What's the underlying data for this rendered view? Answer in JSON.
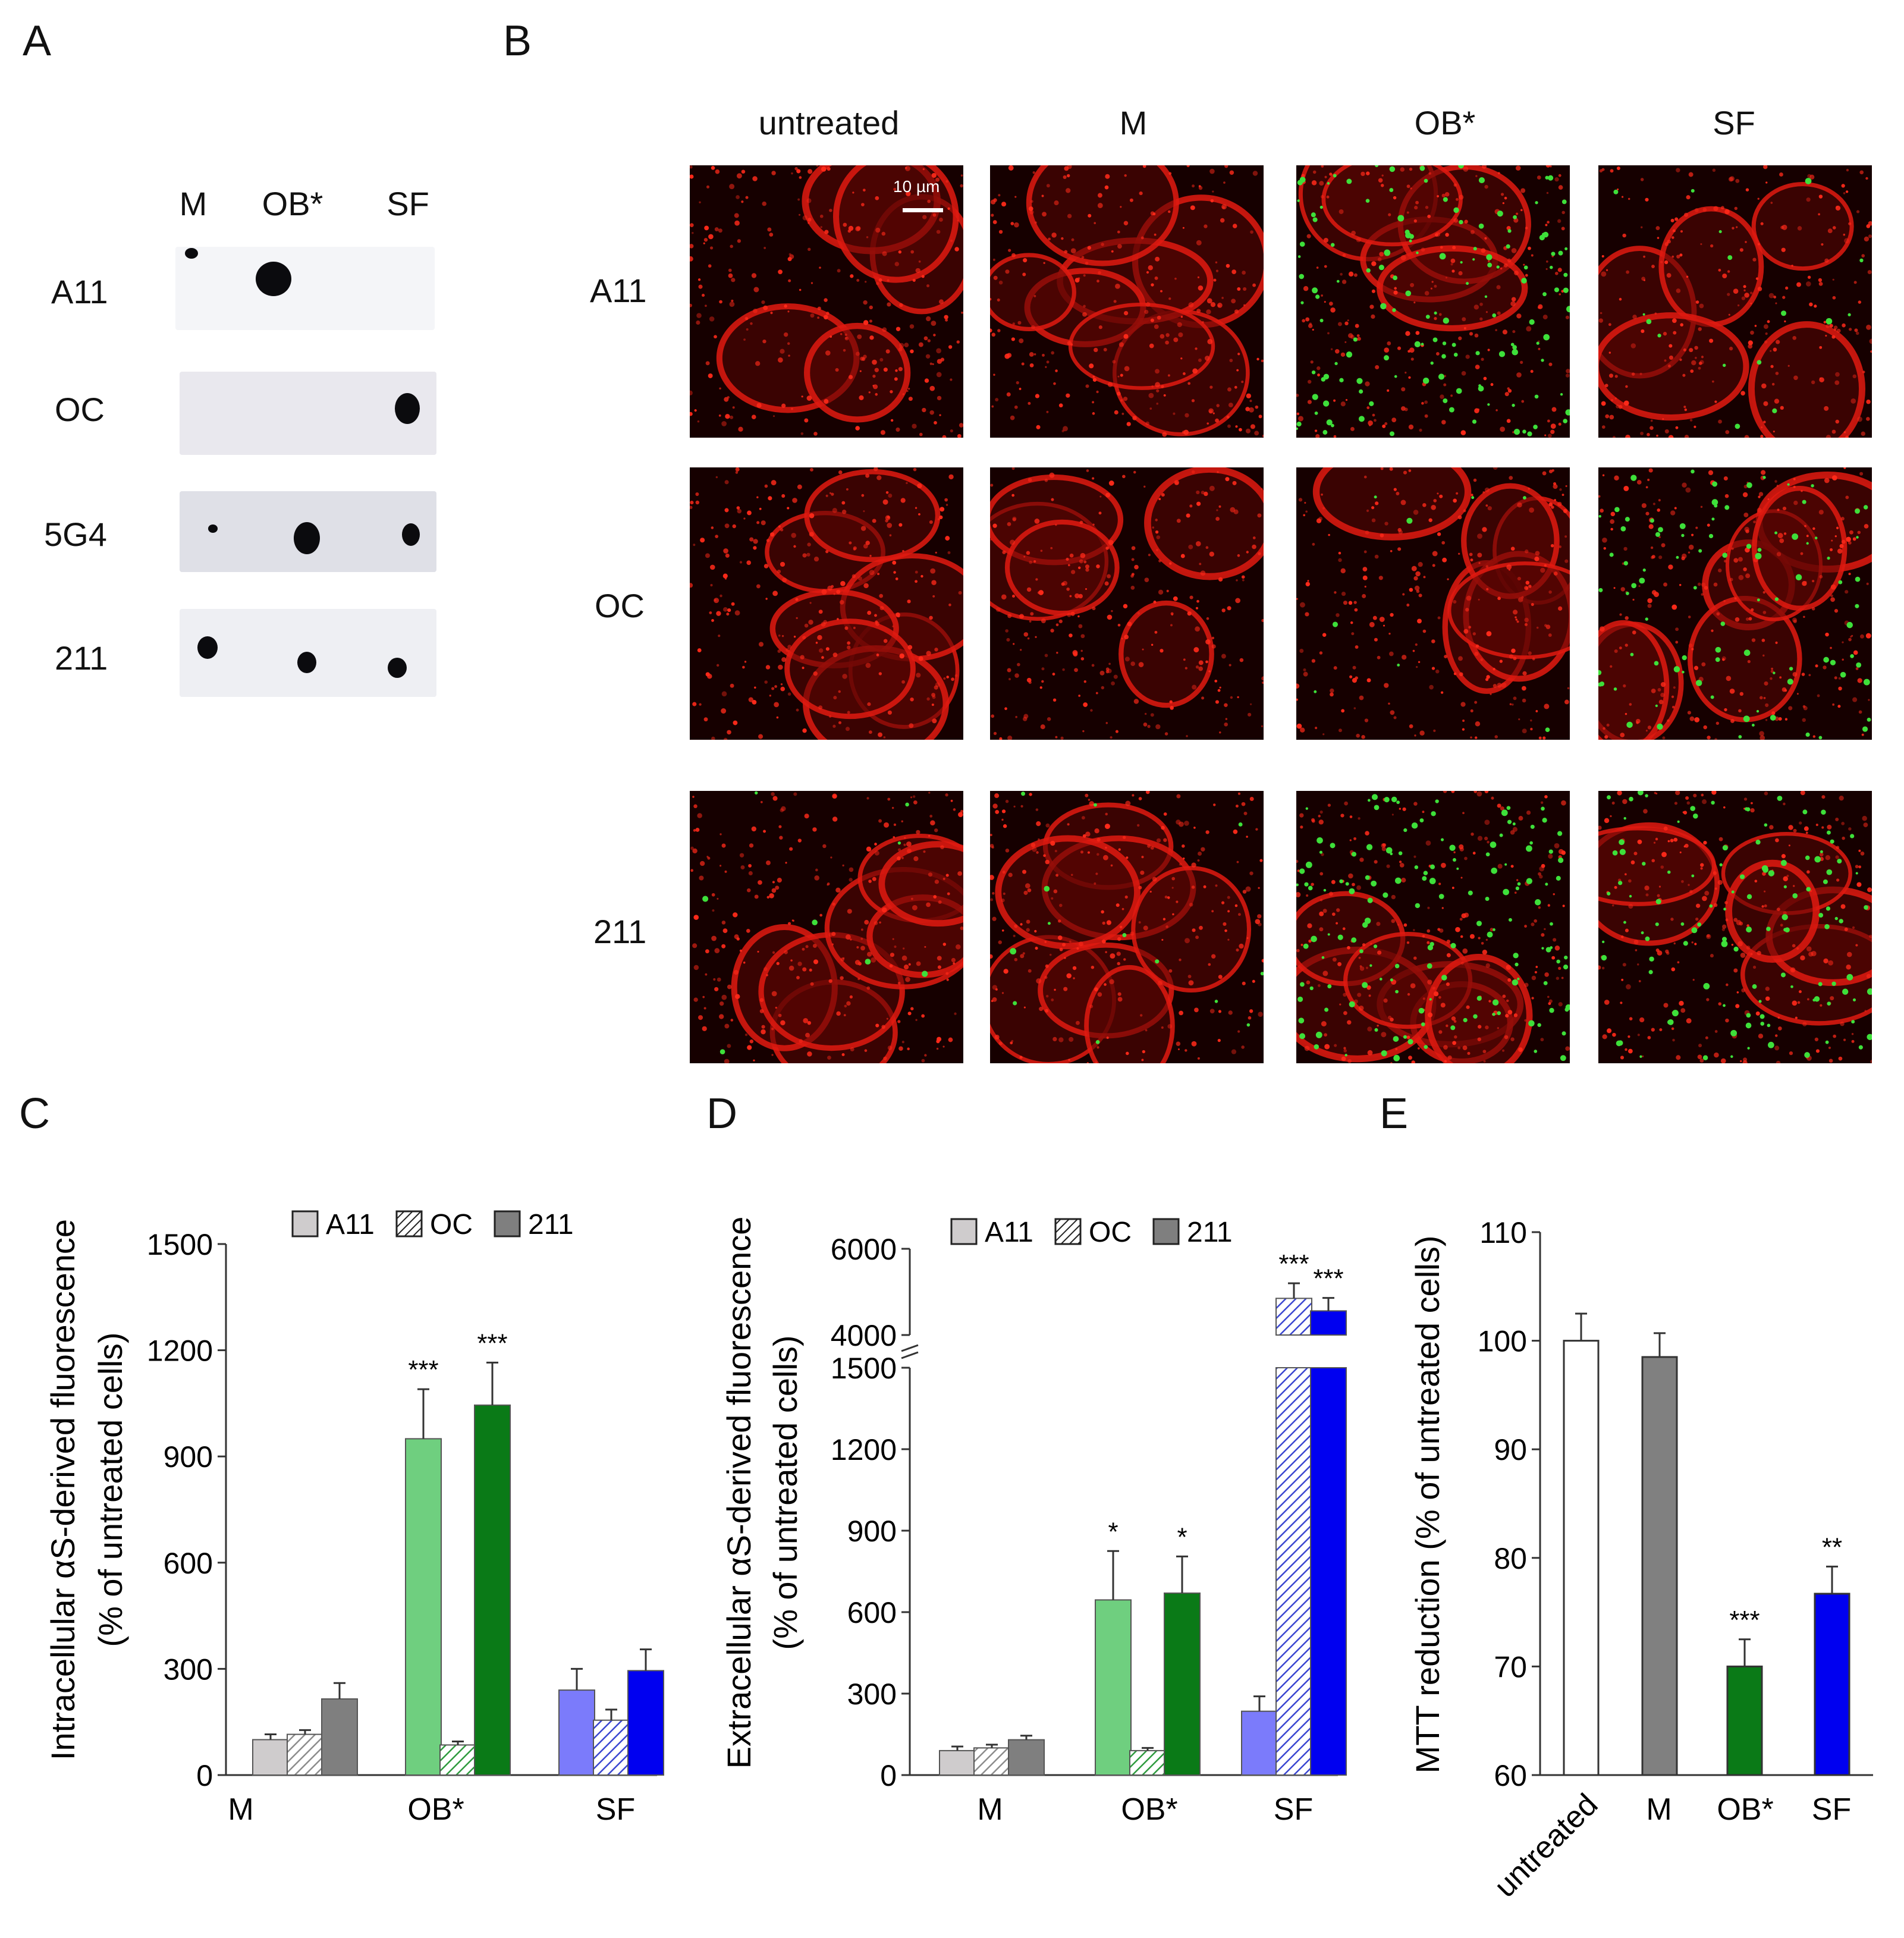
{
  "panels": {
    "a": "A",
    "b": "B",
    "c": "C",
    "d": "D",
    "e": "E"
  },
  "panelA": {
    "columns": [
      "M",
      "OB*",
      "SF"
    ],
    "rows": [
      {
        "label": "A11",
        "shading": "#f4f5f8"
      },
      {
        "label": "OC",
        "shading": "#e9e8ee"
      },
      {
        "label": "5G4",
        "shading": "#dfe0e7"
      },
      {
        "label": "211",
        "shading": "#eeeff3"
      }
    ]
  },
  "panelB": {
    "columns": [
      "untreated",
      "M",
      "OB*",
      "SF"
    ],
    "rows": [
      "A11",
      "OC",
      "211"
    ],
    "scale_bar": "10 µm",
    "green_puncta_level": [
      [
        0,
        0,
        0.85,
        0.1
      ],
      [
        0,
        0,
        0.05,
        0.55
      ],
      [
        0.05,
        0.08,
        0.9,
        0.7
      ]
    ],
    "colors": {
      "membrane": "#e11a10",
      "puncta": "#3ee03a",
      "background": "#160000"
    }
  },
  "chart_data": [
    {
      "id": "C",
      "type": "bar",
      "ylabel_line1": "Intracellular αS-derived fluorescence",
      "ylabel_line2": "(% of untreated cells)",
      "ylim": [
        0,
        1500
      ],
      "yticks": [
        "0",
        "300",
        "600",
        "900",
        "1200",
        "1500"
      ],
      "categories": [
        "M",
        "OB*",
        "SF"
      ],
      "legend": [
        "A11",
        "OC",
        "211"
      ],
      "series": [
        {
          "name": "A11",
          "values": [
            100,
            950,
            240
          ],
          "errors": [
            15,
            140,
            60
          ],
          "colors": [
            "#cfcccd",
            "#6fcf7f",
            "#7b7bfb"
          ],
          "pattern": "solid"
        },
        {
          "name": "OC",
          "values": [
            115,
            85,
            155
          ],
          "errors": [
            12,
            10,
            30
          ],
          "colors": [
            "#b9b9b9",
            "#2e9a3e",
            "#4a56d8"
          ],
          "pattern": "hatch"
        },
        {
          "name": "211",
          "values": [
            215,
            1045,
            295
          ],
          "errors": [
            45,
            120,
            60
          ],
          "colors": [
            "#7f7f7f",
            "#0a7a17",
            "#0000f0"
          ],
          "pattern": "solid"
        }
      ],
      "annotations": [
        "",
        "",
        "",
        "***",
        "",
        "***",
        "",
        "",
        ""
      ]
    },
    {
      "id": "D",
      "type": "bar",
      "ylabel_line1": "Extracellular αS-derived fluorescence",
      "ylabel_line2": "(% of untreated cells)",
      "broken_axis": true,
      "ylim_lower": [
        0,
        1500
      ],
      "ylim_upper": [
        4000,
        6000
      ],
      "yticks_lower": [
        "0",
        "300",
        "600",
        "900",
        "1200",
        "1500"
      ],
      "yticks_upper": [
        "4000",
        "6000"
      ],
      "categories": [
        "M",
        "OB*",
        "SF"
      ],
      "legend": [
        "A11",
        "OC",
        "211"
      ],
      "series": [
        {
          "name": "A11",
          "values": [
            90,
            645,
            235
          ],
          "errors": [
            15,
            180,
            55
          ],
          "colors": [
            "#cfcccd",
            "#6fcf7f",
            "#7b7bfb"
          ],
          "pattern": "solid"
        },
        {
          "name": "OC",
          "values": [
            100,
            90,
            4850
          ],
          "errors": [
            12,
            10,
            350
          ],
          "colors": [
            "#b9b9b9",
            "#2e9a3e",
            "#4a56d8"
          ],
          "pattern": "hatch"
        },
        {
          "name": "211",
          "values": [
            130,
            670,
            4560
          ],
          "errors": [
            15,
            135,
            300
          ],
          "colors": [
            "#7f7f7f",
            "#0a7a17",
            "#0000f0"
          ],
          "pattern": "solid"
        }
      ],
      "annotations": [
        "",
        "",
        "",
        "*",
        "",
        "*",
        "",
        "***",
        "***"
      ]
    },
    {
      "id": "E",
      "type": "bar",
      "ylabel": "MTT reduction (% of untreated cells)",
      "ylim": [
        60,
        110
      ],
      "yticks": [
        "60",
        "70",
        "80",
        "90",
        "100",
        "110"
      ],
      "categories": [
        "untreated",
        "M",
        "OB*",
        "SF"
      ],
      "values": [
        100,
        98.5,
        70,
        76.7
      ],
      "errors": [
        2.5,
        2.2,
        2.5,
        2.5
      ],
      "colors": [
        "#ffffff",
        "#808080",
        "#0a7a17",
        "#0000f0"
      ],
      "annotations": [
        "",
        "",
        "***",
        "**"
      ]
    }
  ]
}
